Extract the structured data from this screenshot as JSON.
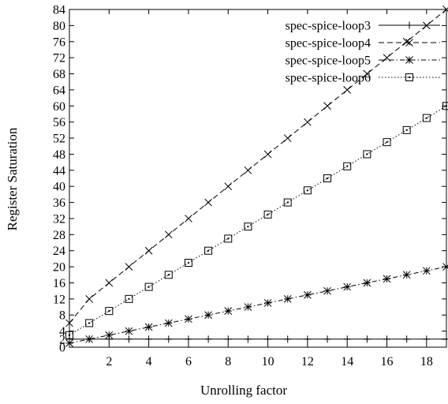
{
  "chart_data": {
    "type": "line",
    "xlabel": "Unrolling factor",
    "ylabel": "Register Saturation",
    "xlim": [
      0,
      19
    ],
    "ylim": [
      0,
      84
    ],
    "xticks": [
      2,
      4,
      6,
      8,
      10,
      12,
      14,
      16,
      18
    ],
    "yticks": [
      0,
      2,
      4,
      8,
      12,
      16,
      20,
      24,
      28,
      32,
      36,
      40,
      44,
      48,
      52,
      56,
      60,
      64,
      68,
      72,
      76,
      80,
      84
    ],
    "grid": false,
    "legend_position": "top-right",
    "x": [
      0,
      1,
      2,
      3,
      4,
      5,
      6,
      7,
      8,
      9,
      10,
      11,
      12,
      13,
      14,
      15,
      16,
      17,
      18,
      19
    ],
    "series": [
      {
        "name": "spec-spice-loop3",
        "marker": "plus",
        "dash": "solid",
        "values": [
          2,
          2,
          2,
          2,
          2,
          2,
          2,
          2,
          2,
          2,
          2,
          2,
          2,
          2,
          2,
          2,
          2,
          2,
          2,
          2
        ]
      },
      {
        "name": "spec-spice-loop4",
        "marker": "cross",
        "dash": "dashed",
        "values": [
          6,
          12,
          16,
          20,
          24,
          28,
          32,
          36,
          40,
          44,
          48,
          52,
          56,
          60,
          64,
          68,
          72,
          76,
          80,
          84
        ]
      },
      {
        "name": "spec-spice-loop5",
        "marker": "star",
        "dash": "dashdot",
        "values": [
          1,
          2,
          3,
          4,
          5,
          6,
          7,
          8,
          9,
          10,
          11,
          12,
          13,
          14,
          15,
          16,
          17,
          18,
          19,
          20
        ]
      },
      {
        "name": "spec-spice-loop6",
        "marker": "square",
        "dash": "dotted",
        "values": [
          3,
          6,
          9,
          12,
          15,
          18,
          21,
          24,
          27,
          30,
          33,
          36,
          39,
          42,
          45,
          48,
          51,
          54,
          57,
          60
        ]
      }
    ]
  }
}
